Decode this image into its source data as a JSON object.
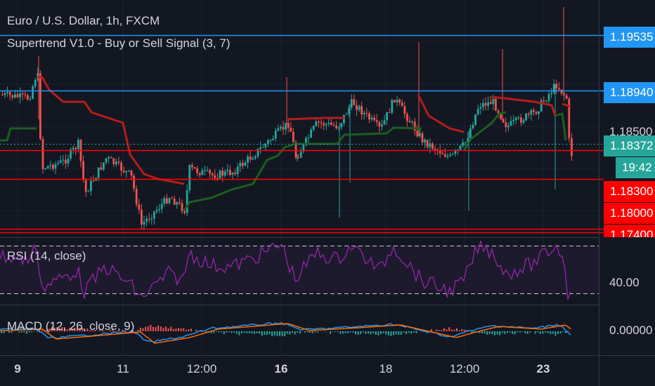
{
  "header": {
    "symbol_line": "Euro / U.S. Dollar, 1h, FXCM",
    "indicator_line": "Supertrend V1.0 - Buy or Sell Signal (3, 7)",
    "rsi_label": "RSI (14, close)",
    "macd_label": "MACD (12, 26, close, 9)"
  },
  "price_axis": {
    "labels": [
      "1.19535",
      "1.18940",
      "1.18500",
      "1.18372",
      "19:42",
      "1.18300",
      "1.18000",
      "1.17400"
    ],
    "rsi_label": "40.00",
    "macd_label": "0.00000"
  },
  "time_axis": {
    "labels": [
      "9",
      "11",
      "12:00",
      "16",
      "18",
      "12:00",
      "23"
    ]
  },
  "colors": {
    "background": "#131722",
    "up": "#26a69a",
    "down": "#ef5350",
    "supertrend_up": "#1b5e20",
    "supertrend_down": "#b71c1c",
    "hline_blue": "#2196f3",
    "hline_red": "#ff0000",
    "rsi": "#9c27b0",
    "macd": "#2196f3",
    "signal": "#ff6d00"
  }
}
